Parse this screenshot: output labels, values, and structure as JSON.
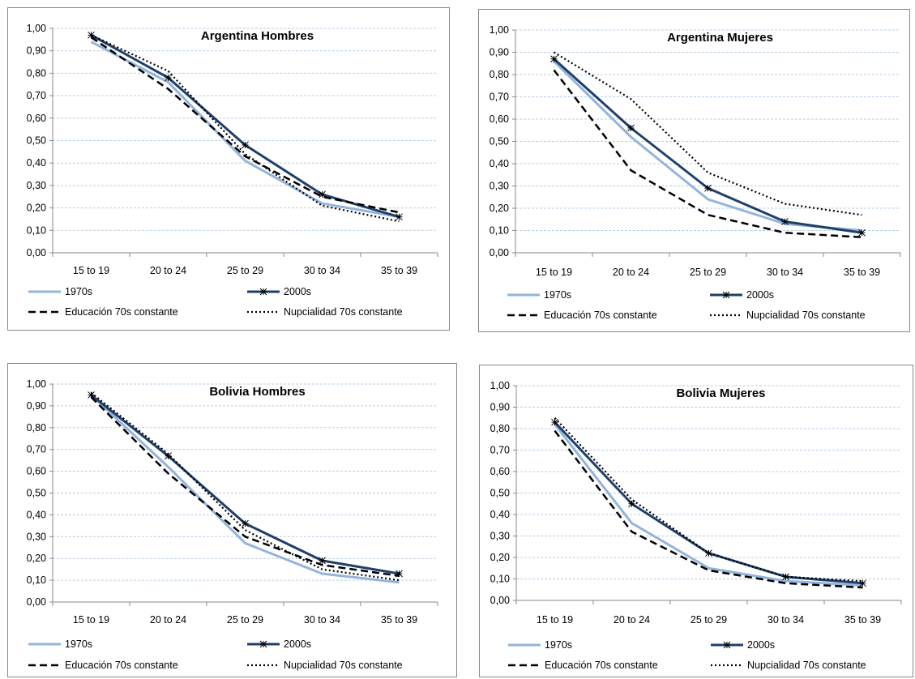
{
  "styles": {
    "1970s": {
      "color": "#93b4dc",
      "width": 3,
      "dash": "",
      "marker": false
    },
    "2000s": {
      "color": "#1f3f6b",
      "width": 3,
      "dash": "",
      "marker": true
    },
    "educacion": {
      "color": "#000000",
      "width": 2.5,
      "dash": "9,5",
      "marker": false
    },
    "nupcialidad": {
      "color": "#000000",
      "width": 2.2,
      "dash": "2,3",
      "marker": false
    }
  },
  "chart_data": [
    {
      "type": "line",
      "title": "Argentina Hombres",
      "categories": [
        "15 to 19",
        "20 to 24",
        "25 to 29",
        "30 to 34",
        "35 to 39"
      ],
      "ylim": [
        0,
        1
      ],
      "yticks": [
        "0,00",
        "0,10",
        "0,20",
        "0,30",
        "0,40",
        "0,50",
        "0,60",
        "0,70",
        "0,80",
        "0,90",
        "1,00"
      ],
      "grid": true,
      "legend_position": "bottom",
      "series": [
        {
          "name": "1970s",
          "style": "1970s",
          "values": [
            0.94,
            0.76,
            0.41,
            0.22,
            0.16
          ]
        },
        {
          "name": "2000s",
          "style": "2000s",
          "values": [
            0.97,
            0.78,
            0.48,
            0.26,
            0.16
          ]
        },
        {
          "name": "Educación 70s constante",
          "style": "educacion",
          "values": [
            0.96,
            0.73,
            0.43,
            0.25,
            0.18
          ]
        },
        {
          "name": "Nupcialidad 70s constante",
          "style": "nupcialidad",
          "values": [
            0.97,
            0.81,
            0.44,
            0.21,
            0.14
          ]
        }
      ]
    },
    {
      "type": "line",
      "title": "Argentina Mujeres",
      "categories": [
        "15 to 19",
        "20 to 24",
        "25 to 29",
        "30 to 34",
        "35 to 39"
      ],
      "ylim": [
        0,
        1
      ],
      "yticks": [
        "0,00",
        "0,10",
        "0,20",
        "0,30",
        "0,40",
        "0,50",
        "0,60",
        "0,70",
        "0,80",
        "0,90",
        "1,00"
      ],
      "grid": true,
      "legend_position": "bottom",
      "series": [
        {
          "name": "1970s",
          "style": "1970s",
          "values": [
            0.86,
            0.52,
            0.24,
            0.13,
            0.1
          ]
        },
        {
          "name": "2000s",
          "style": "2000s",
          "values": [
            0.87,
            0.56,
            0.29,
            0.14,
            0.09
          ]
        },
        {
          "name": "Educación 70s constante",
          "style": "educacion",
          "values": [
            0.82,
            0.37,
            0.17,
            0.09,
            0.07
          ]
        },
        {
          "name": "Nupcialidad 70s constante",
          "style": "nupcialidad",
          "values": [
            0.9,
            0.69,
            0.36,
            0.22,
            0.17
          ]
        }
      ]
    },
    {
      "type": "line",
      "title": "Bolivia Hombres",
      "categories": [
        "15 to 19",
        "20 to 24",
        "25 to 29",
        "30 to 34",
        "35 to 39"
      ],
      "ylim": [
        0,
        1
      ],
      "yticks": [
        "0,00",
        "0,10",
        "0,20",
        "0,30",
        "0,40",
        "0,50",
        "0,60",
        "0,70",
        "0,80",
        "0,90",
        "1,00"
      ],
      "grid": true,
      "legend_position": "bottom",
      "series": [
        {
          "name": "1970s",
          "style": "1970s",
          "values": [
            0.95,
            0.62,
            0.27,
            0.13,
            0.09
          ]
        },
        {
          "name": "2000s",
          "style": "2000s",
          "values": [
            0.95,
            0.67,
            0.36,
            0.19,
            0.13
          ]
        },
        {
          "name": "Educación 70s constante",
          "style": "educacion",
          "values": [
            0.94,
            0.59,
            0.3,
            0.17,
            0.12
          ]
        },
        {
          "name": "Nupcialidad 70s constante",
          "style": "nupcialidad",
          "values": [
            0.96,
            0.68,
            0.33,
            0.15,
            0.1
          ]
        }
      ]
    },
    {
      "type": "line",
      "title": "Bolivia Mujeres",
      "categories": [
        "15 to 19",
        "20 to 24",
        "25 to 29",
        "30 to 34",
        "35 to 39"
      ],
      "ylim": [
        0,
        1
      ],
      "yticks": [
        "0,00",
        "0,10",
        "0,20",
        "0,30",
        "0,40",
        "0,50",
        "0,60",
        "0,70",
        "0,80",
        "0,90",
        "1,00"
      ],
      "grid": true,
      "legend_position": "bottom",
      "series": [
        {
          "name": "1970s",
          "style": "1970s",
          "values": [
            0.82,
            0.36,
            0.15,
            0.09,
            0.07
          ]
        },
        {
          "name": "2000s",
          "style": "2000s",
          "values": [
            0.83,
            0.45,
            0.22,
            0.11,
            0.08
          ]
        },
        {
          "name": "Educación 70s constante",
          "style": "educacion",
          "values": [
            0.79,
            0.32,
            0.14,
            0.08,
            0.06
          ]
        },
        {
          "name": "Nupcialidad 70s constante",
          "style": "nupcialidad",
          "values": [
            0.85,
            0.47,
            0.22,
            0.11,
            0.09
          ]
        }
      ]
    }
  ]
}
